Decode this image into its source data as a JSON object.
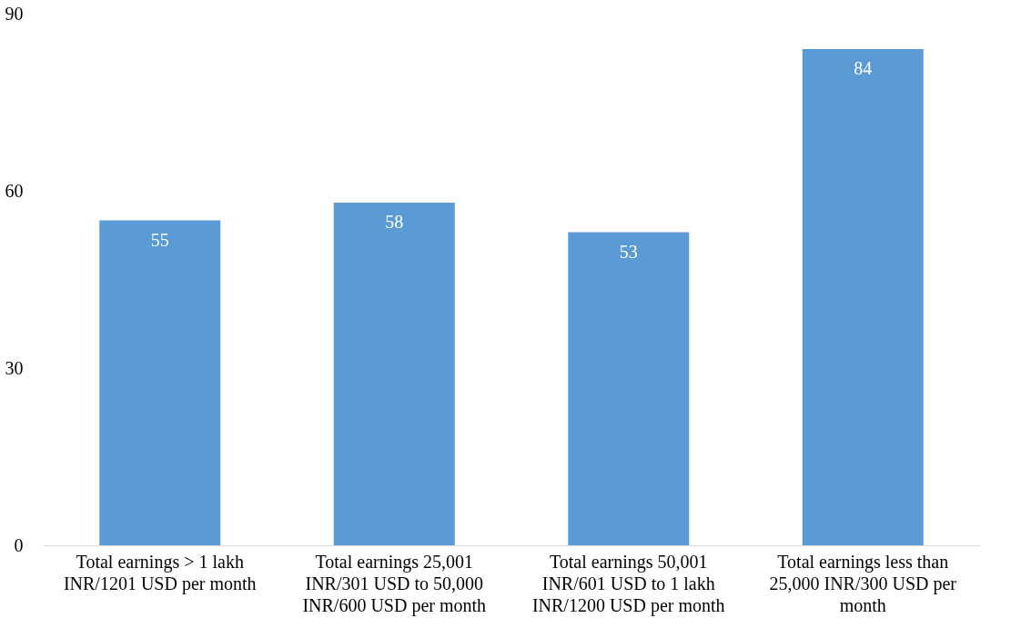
{
  "chart_data": {
    "type": "bar",
    "categories": [
      "Total earnings > 1 lakh INR/1201 USD per month",
      "Total earnings 25,001 INR/301 USD to 50,000 INR/600 USD per month",
      "Total earnings 50,001 INR/601 USD to 1 lakh INR/1200 USD per month",
      "Total earnings less than 25,000 INR/300 USD per month"
    ],
    "values": [
      55,
      58,
      53,
      84
    ],
    "color": "#5b9bd5",
    "ylim": [
      0,
      90
    ],
    "yticks": [
      0,
      30,
      60,
      90
    ],
    "grid": false,
    "data_labels": true
  }
}
